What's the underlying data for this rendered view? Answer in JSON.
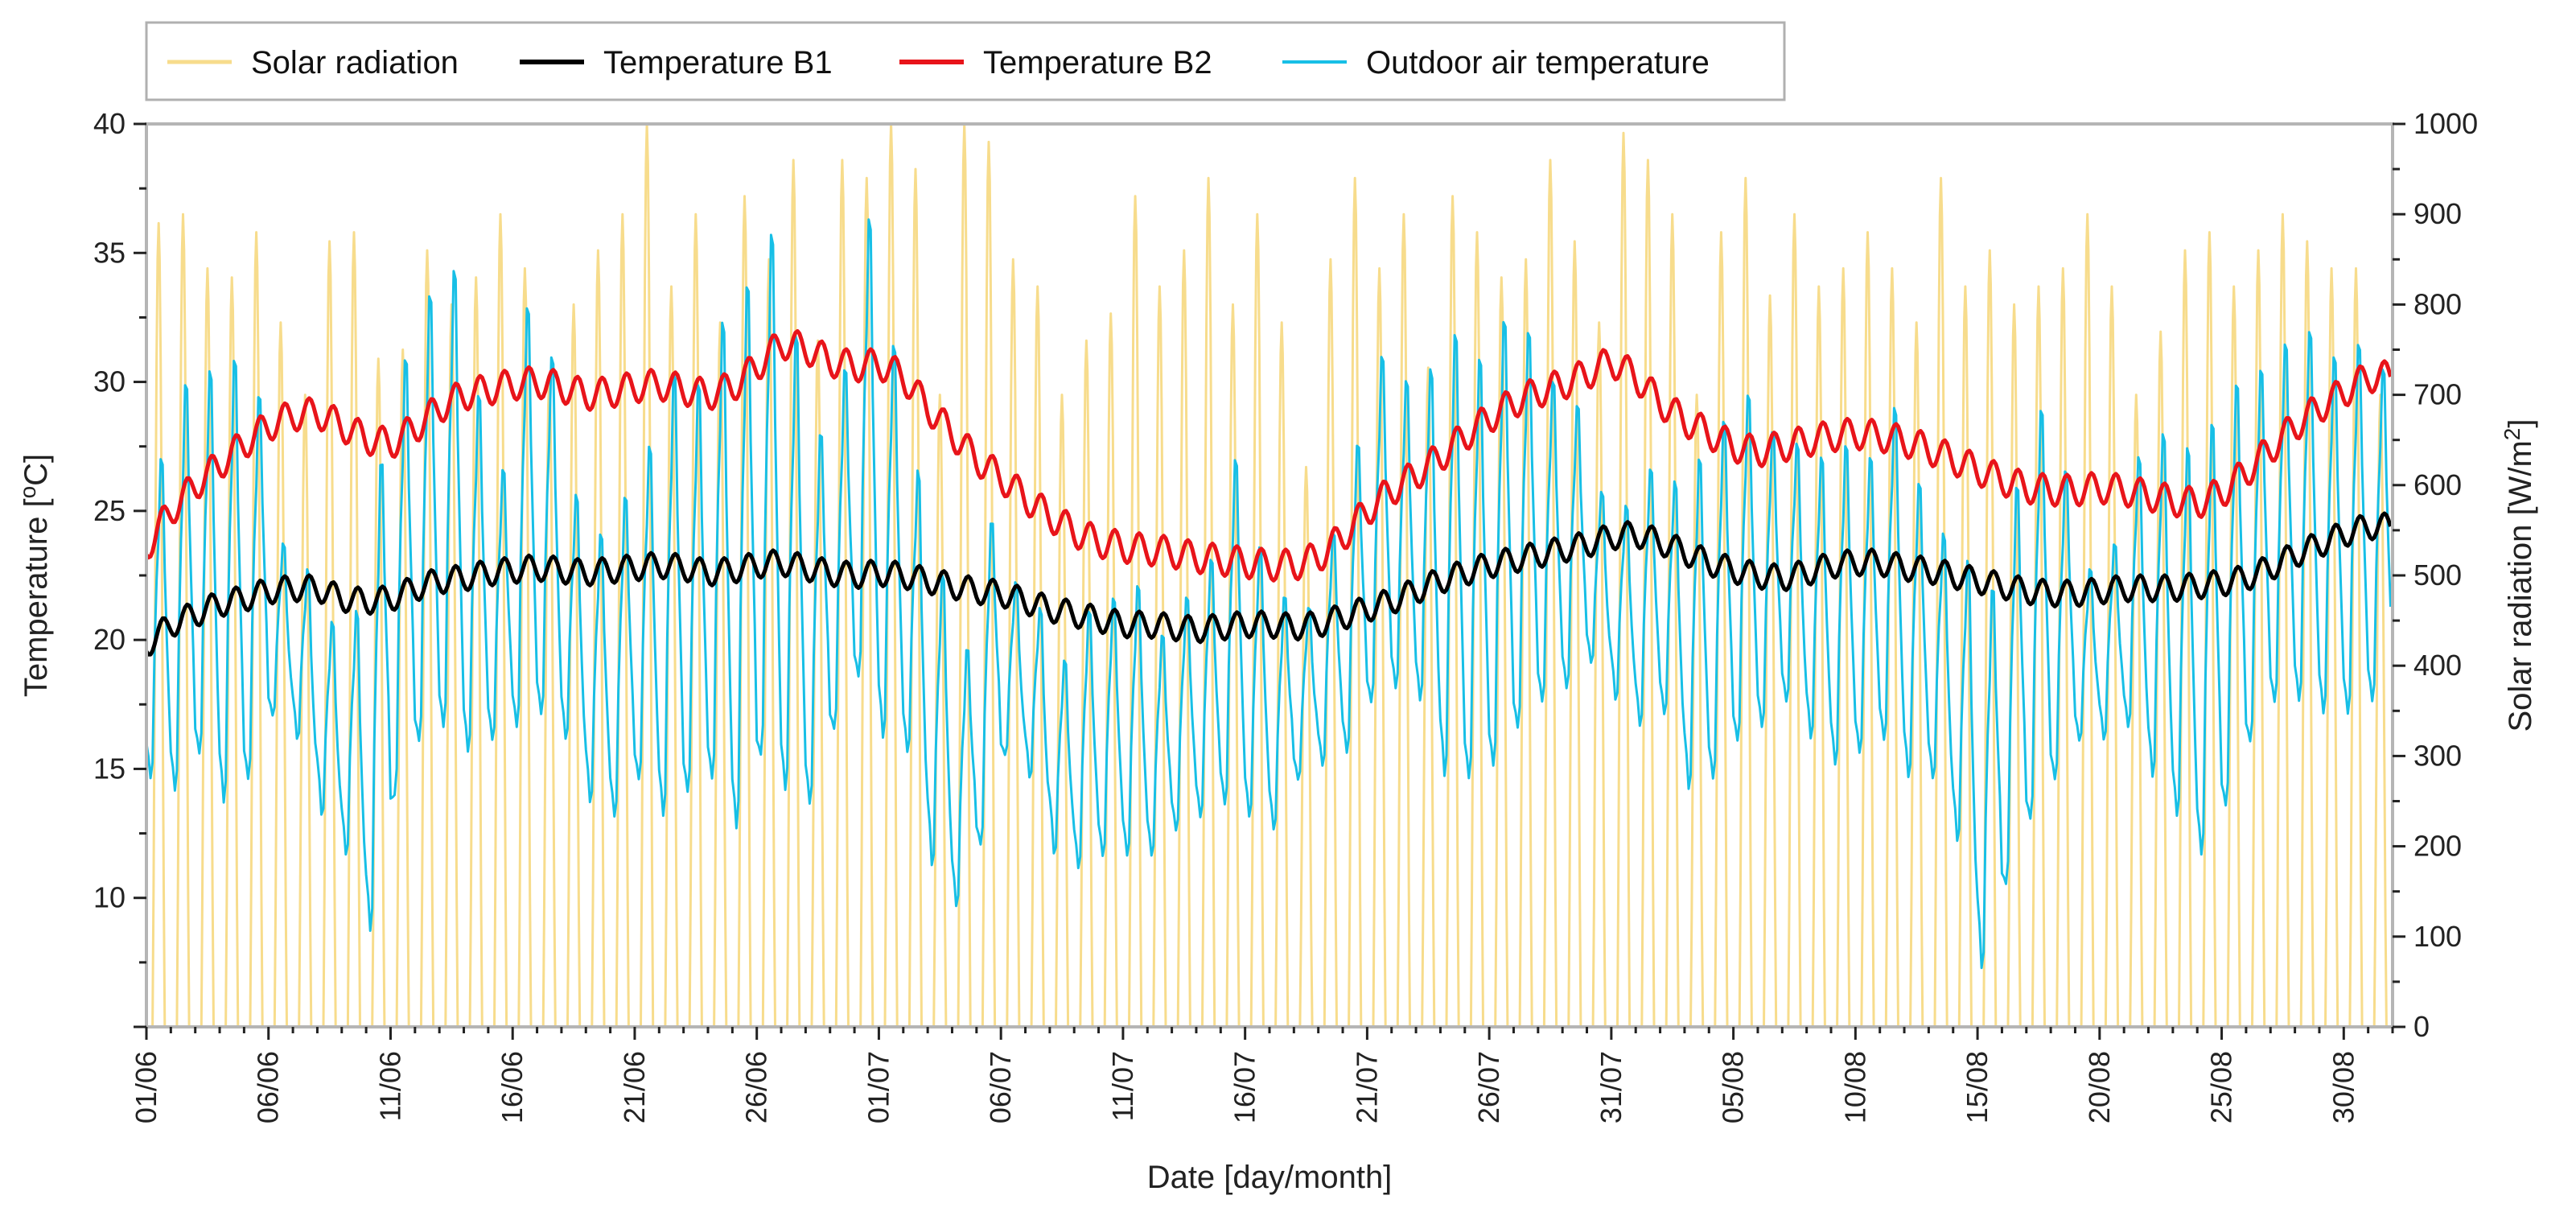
{
  "chart_data": {
    "type": "line",
    "xlabel": "Date [day/month]",
    "ylabel_left": "Temperature [",
    "ylabel_left_unit_super": "o",
    "ylabel_left_unit_tail": "C]",
    "ylabel_right": "Solar radiation [W/m",
    "ylabel_right_super": "2",
    "ylabel_right_tail": "]",
    "x_start": "01/06",
    "x_end": "31/08",
    "x_ticks": [
      "01/06",
      "06/06",
      "11/06",
      "16/06",
      "21/06",
      "26/06",
      "01/07",
      "06/07",
      "11/07",
      "16/07",
      "21/07",
      "26/07",
      "31/07",
      "05/08",
      "10/08",
      "15/08",
      "20/08",
      "25/08",
      "30/08"
    ],
    "y_left_ticks": [
      "10",
      "15",
      "20",
      "25",
      "30",
      "35",
      "40"
    ],
    "y_left_range": [
      5,
      40
    ],
    "y_right_ticks": [
      "0",
      "100",
      "200",
      "300",
      "400",
      "500",
      "600",
      "700",
      "800",
      "900",
      "1000"
    ],
    "y_right_range": [
      0,
      1000
    ],
    "legend_position": "top-left",
    "legend": [
      {
        "name": "Solar radiation",
        "color": "#f7dc8c"
      },
      {
        "name": "Temperature B1",
        "color": "#000000"
      },
      {
        "name": "Temperature B2",
        "color": "#e8141a"
      },
      {
        "name": "Outdoor air temperature",
        "color": "#17bfe6"
      }
    ],
    "series": [
      {
        "name": "Solar radiation",
        "axis": "right",
        "color": "#f7dc8c",
        "daily_peak": [
          890,
          900,
          840,
          830,
          880,
          780,
          700,
          870,
          880,
          740,
          750,
          860,
          800,
          830,
          900,
          840,
          720,
          800,
          860,
          900,
          1000,
          820,
          900,
          780,
          920,
          850,
          960,
          760,
          960,
          940,
          1000,
          950,
          700,
          1000,
          980,
          850,
          820,
          700,
          760,
          790,
          920,
          820,
          860,
          940,
          800,
          900,
          780,
          620,
          850,
          940,
          840,
          900,
          730,
          920,
          880,
          830,
          850,
          960,
          870,
          780,
          990,
          960,
          900,
          700,
          880,
          940,
          810,
          900,
          820,
          840,
          880,
          840,
          780,
          940,
          820,
          860,
          800,
          820,
          840,
          900,
          820,
          700,
          770,
          860,
          880,
          820,
          860,
          900,
          870,
          840,
          840,
          700
        ]
      },
      {
        "name": "Temperature B1",
        "axis": "left",
        "color": "#000000",
        "daily_mean": [
          19.8,
          20.6,
          21.0,
          21.4,
          21.6,
          21.9,
          22.0,
          22.0,
          21.6,
          21.5,
          21.6,
          22.0,
          22.3,
          22.4,
          22.6,
          22.7,
          22.8,
          22.7,
          22.6,
          22.7,
          22.8,
          22.9,
          22.8,
          22.6,
          22.7,
          22.9,
          23.0,
          22.8,
          22.6,
          22.5,
          22.6,
          22.5,
          22.3,
          22.1,
          21.9,
          21.8,
          21.5,
          21.2,
          21.0,
          20.8,
          20.6,
          20.6,
          20.5,
          20.4,
          20.5,
          20.6,
          20.6,
          20.5,
          20.6,
          20.9,
          21.2,
          21.5,
          21.9,
          22.3,
          22.6,
          22.9,
          23.1,
          23.3,
          23.5,
          23.7,
          24.0,
          24.1,
          23.8,
          23.4,
          23.0,
          22.7,
          22.5,
          22.4,
          22.6,
          22.9,
          23.0,
          23.0,
          22.8,
          22.7,
          22.5,
          22.3,
          22.1,
          21.9,
          21.8,
          21.8,
          21.9,
          22.0,
          22.0,
          22.0,
          22.1,
          22.2,
          22.4,
          22.8,
          23.3,
          23.7,
          24.1,
          24.4
        ]
      },
      {
        "name": "Temperature B2",
        "axis": "left",
        "color": "#e8141a",
        "daily_mean": [
          23.6,
          25.0,
          26.0,
          26.8,
          27.6,
          28.3,
          28.7,
          28.8,
          28.3,
          27.8,
          27.6,
          28.2,
          29.0,
          29.5,
          29.7,
          29.9,
          30.0,
          29.8,
          29.5,
          29.6,
          29.8,
          29.9,
          29.7,
          29.5,
          29.8,
          30.6,
          31.5,
          31.3,
          30.8,
          30.6,
          30.7,
          30.2,
          29.0,
          28.0,
          27.0,
          26.3,
          25.5,
          24.8,
          24.2,
          23.8,
          23.6,
          23.5,
          23.4,
          23.2,
          23.1,
          23.0,
          22.9,
          22.9,
          23.2,
          24.0,
          25.0,
          25.8,
          26.4,
          27.1,
          27.9,
          28.6,
          29.2,
          29.6,
          29.9,
          30.3,
          30.8,
          30.2,
          29.2,
          28.5,
          28.0,
          27.5,
          27.3,
          27.5,
          27.7,
          27.9,
          28.0,
          27.9,
          27.7,
          27.4,
          27.0,
          26.6,
          26.2,
          25.9,
          25.8,
          25.8,
          25.9,
          25.8,
          25.6,
          25.4,
          25.3,
          25.7,
          26.5,
          27.4,
          28.3,
          29.0,
          29.6,
          30.2
        ]
      },
      {
        "name": "Outdoor air temperature",
        "axis": "left",
        "color": "#17bfe6",
        "daily_min": [
          14.5,
          14.0,
          15.5,
          13.5,
          14.5,
          17.0,
          16.0,
          13.0,
          11.5,
          8.5,
          14.0,
          16.0,
          16.5,
          15.5,
          16.0,
          16.5,
          17.0,
          16.0,
          13.5,
          13.0,
          14.5,
          13.0,
          14.0,
          14.5,
          12.5,
          15.5,
          14.0,
          13.5,
          16.5,
          18.5,
          16.0,
          15.5,
          11.0,
          9.5,
          12.0,
          15.5,
          14.5,
          11.5,
          11.0,
          11.5,
          11.5,
          11.5,
          12.5,
          13.0,
          13.5,
          13.0,
          12.5,
          14.5,
          15.0,
          15.5,
          17.5,
          18.0,
          17.5,
          14.5,
          14.5,
          15.0,
          16.5,
          17.5,
          18.0,
          19.0,
          17.5,
          16.5,
          17.0,
          14.0,
          14.5,
          16.0,
          16.5,
          17.5,
          16.0,
          15.0,
          15.5,
          16.0,
          14.5,
          14.5,
          12.0,
          7.0,
          10.5,
          13.0,
          14.5,
          16.0,
          16.0,
          16.5,
          14.5,
          13.0,
          11.5,
          13.5,
          16.0,
          17.5,
          17.5,
          17.0,
          17.0,
          17.5
        ],
        "daily_max": [
          27.5,
          30.5,
          31.0,
          31.5,
          30.0,
          24.0,
          23.0,
          21.0,
          21.5,
          27.5,
          31.5,
          34.0,
          35.0,
          30.0,
          27.0,
          33.5,
          31.5,
          26.0,
          24.5,
          26.0,
          28.0,
          31.0,
          30.5,
          33.0,
          34.5,
          36.5,
          32.5,
          28.5,
          31.0,
          37.0,
          32.0,
          27.0,
          23.0,
          20.0,
          25.0,
          22.5,
          21.5,
          19.5,
          21.5,
          22.0,
          22.5,
          20.5,
          22.0,
          23.5,
          27.5,
          24.0,
          22.0,
          21.5,
          24.5,
          28.0,
          31.5,
          30.5,
          31.0,
          32.5,
          31.5,
          33.0,
          32.5,
          30.5,
          29.5,
          26.0,
          25.5,
          27.0,
          26.5,
          27.5,
          29.0,
          30.0,
          28.5,
          28.0,
          27.5,
          28.0,
          27.5,
          29.5,
          26.5,
          24.5,
          23.5,
          22.5,
          26.5,
          29.5,
          27.0,
          23.0,
          24.0,
          27.5,
          28.5,
          28.0,
          29.0,
          30.5,
          31.0,
          32.0,
          32.5,
          31.5,
          32.0,
          31.0
        ]
      }
    ]
  }
}
